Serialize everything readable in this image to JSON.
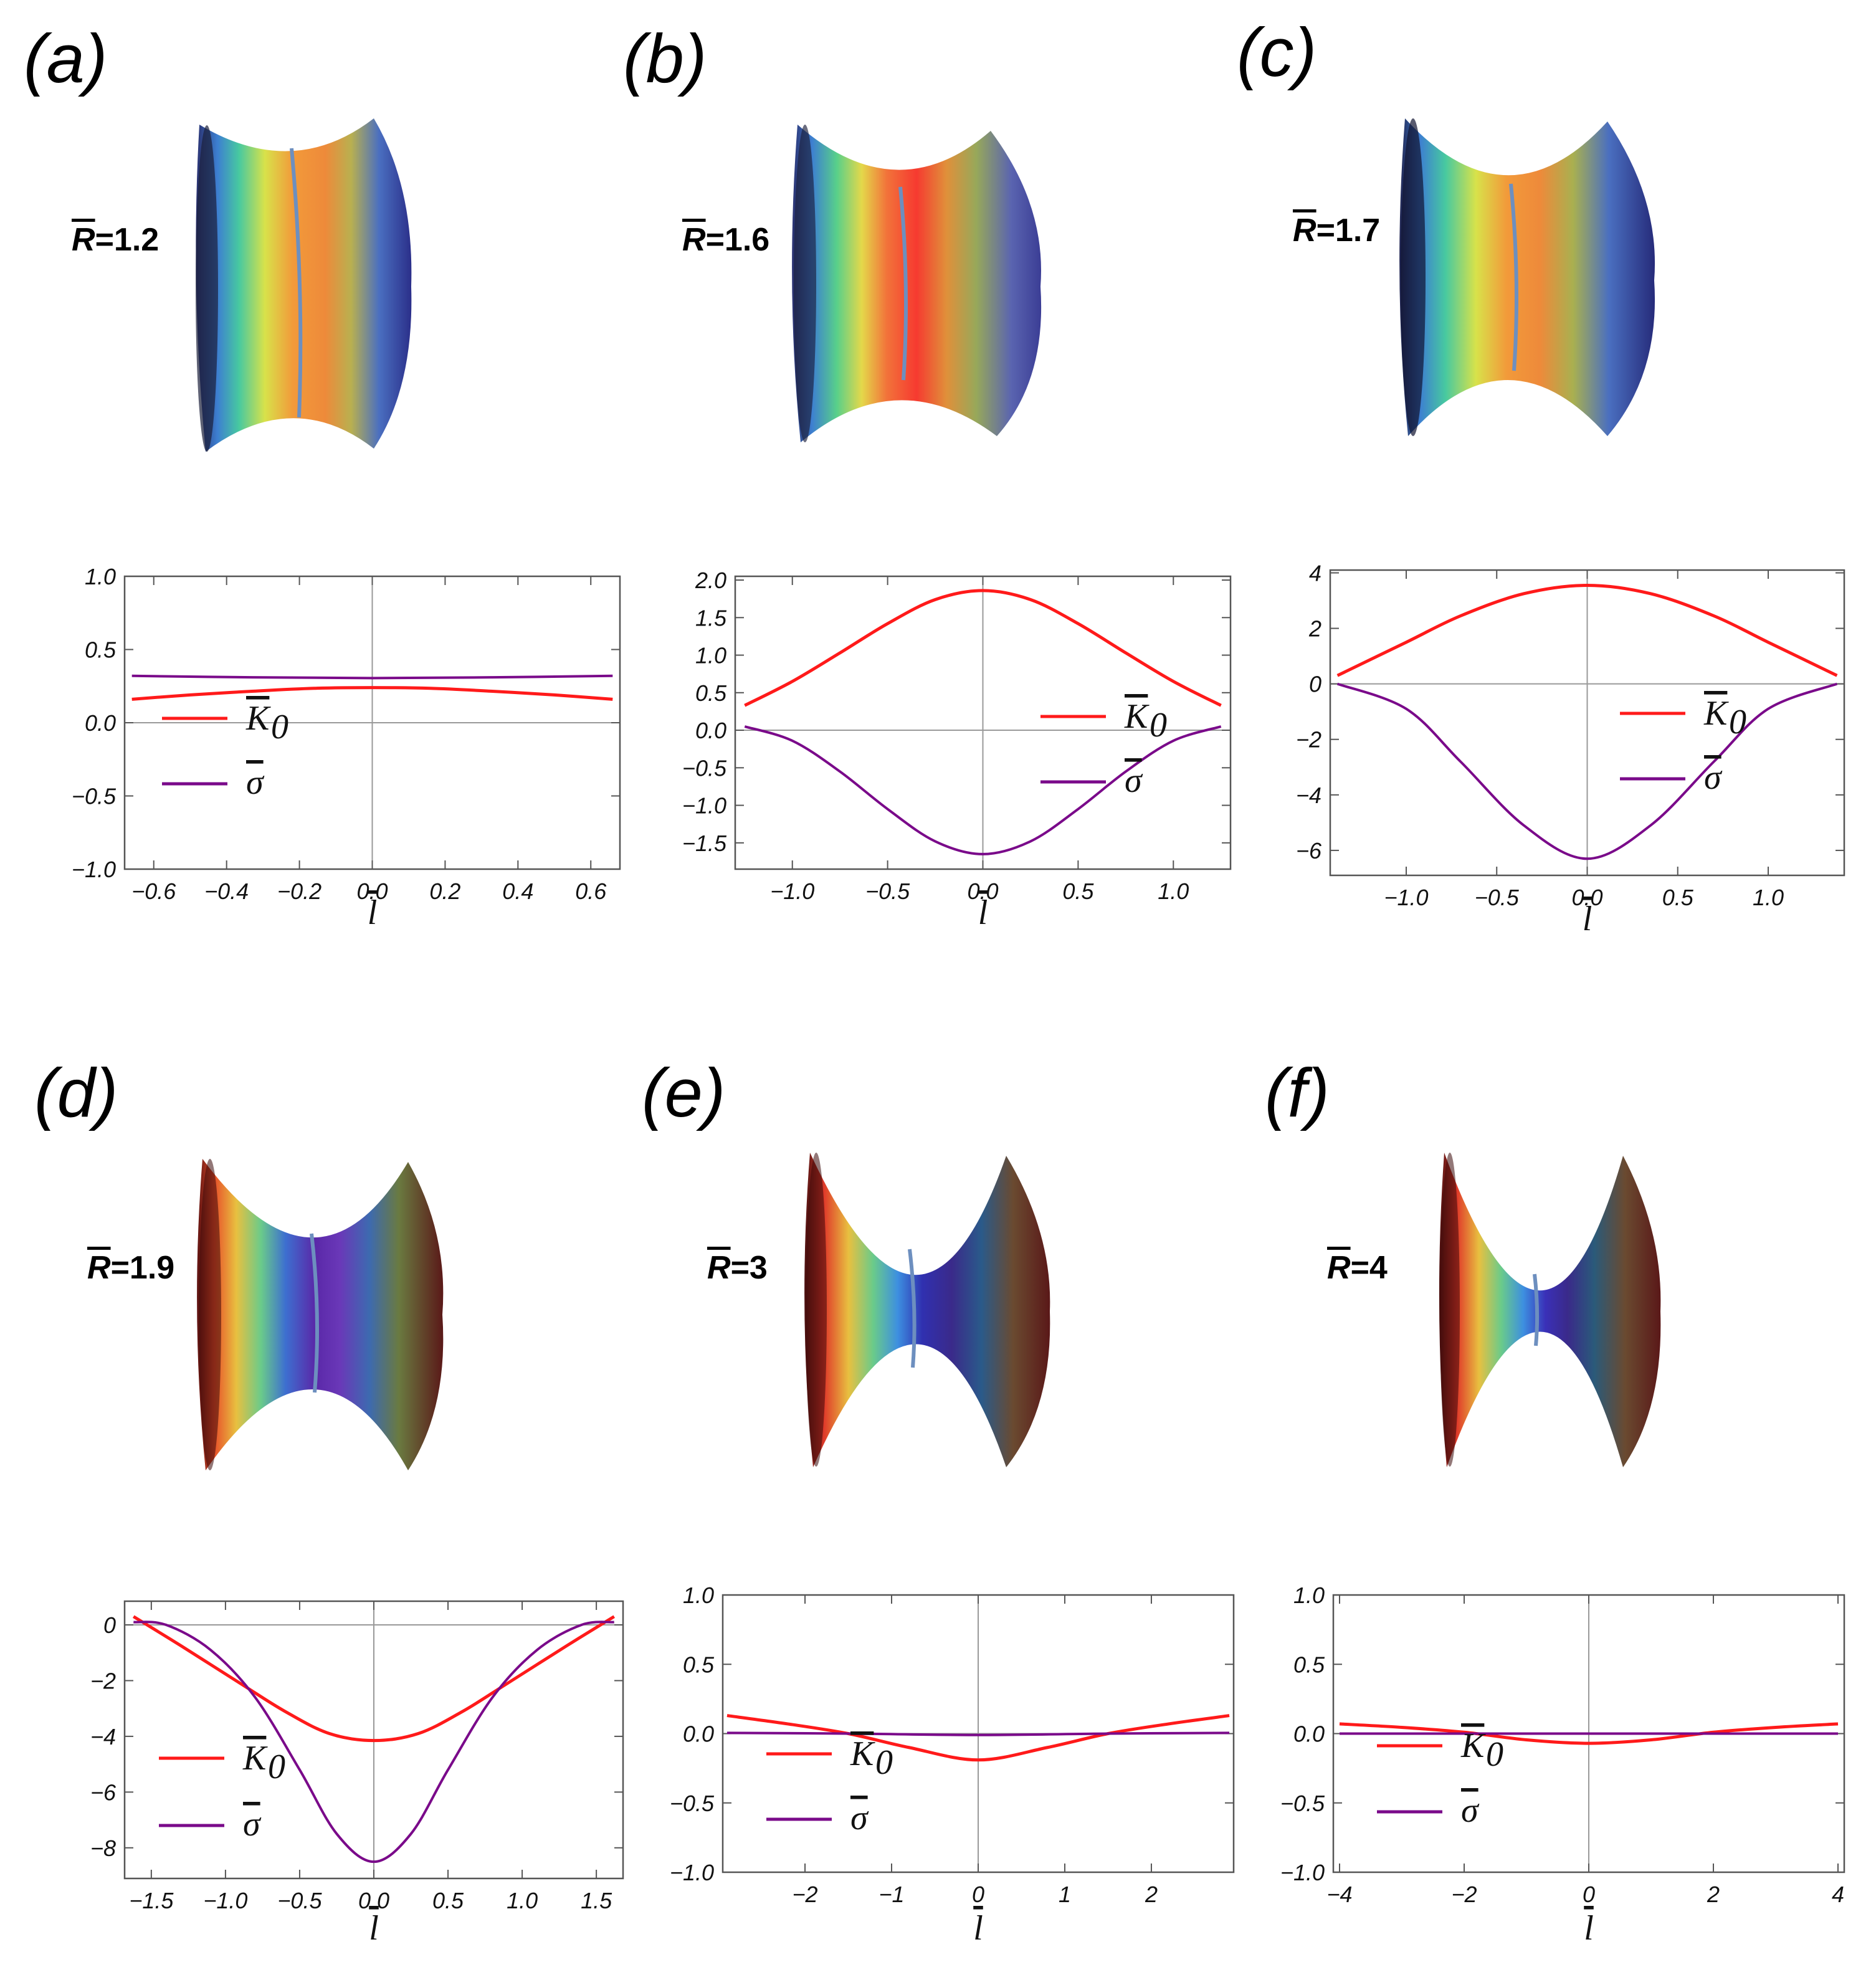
{
  "figure": {
    "panels": [
      {
        "id": "a",
        "label": "(a)",
        "r_label": "R",
        "r_value": "=1.2",
        "surface_palette": "warm-center"
      },
      {
        "id": "b",
        "label": "(b)",
        "r_label": "R",
        "r_value": "=1.6",
        "surface_palette": "red-center"
      },
      {
        "id": "c",
        "label": "(c)",
        "r_label": "R",
        "r_value": "=1.7",
        "surface_palette": "warm-center"
      },
      {
        "id": "d",
        "label": "(d)",
        "r_label": "R",
        "r_value": "=1.9",
        "surface_palette": "violet-center"
      },
      {
        "id": "e",
        "label": "(e)",
        "r_label": "R",
        "r_value": "=3",
        "surface_palette": "blue-center"
      },
      {
        "id": "f",
        "label": "(f)",
        "r_label": "R",
        "r_value": "=4",
        "surface_palette": "blue-center"
      }
    ]
  },
  "colors": {
    "K0": "#ff1a1a",
    "sigma": "#7a0a8a",
    "axis": "#999999",
    "frame": "#555555"
  },
  "legend": {
    "k_symbol": "K",
    "k_subscript": "0",
    "sigma_symbol": "σ"
  },
  "chart_data": [
    {
      "type": "line",
      "panel": "a",
      "xlabel": "l",
      "xlim": [
        -0.68,
        0.68
      ],
      "ylim": [
        -1.0,
        1.0
      ],
      "xticks": [
        -0.6,
        -0.4,
        -0.2,
        0.0,
        0.2,
        0.4,
        0.6
      ],
      "xtick_labels": [
        "−0.6",
        "−0.4",
        "−0.2",
        "0.0",
        "0.2",
        "0.4",
        "0.6"
      ],
      "yticks": [
        1.0,
        0.5,
        0.0,
        -0.5,
        -1.0
      ],
      "ytick_labels": [
        "1.0",
        "0.5",
        "0.0",
        "−0.5",
        "−1.0"
      ],
      "series": [
        {
          "name": "K0",
          "x": [
            -0.66,
            -0.5,
            -0.33,
            -0.16,
            0.0,
            0.16,
            0.33,
            0.5,
            0.66
          ],
          "y": [
            0.16,
            0.19,
            0.215,
            0.235,
            0.24,
            0.235,
            0.215,
            0.19,
            0.16
          ]
        },
        {
          "name": "sigma",
          "x": [
            -0.66,
            -0.33,
            0.0,
            0.33,
            0.66
          ],
          "y": [
            0.32,
            0.31,
            0.305,
            0.31,
            0.32
          ]
        }
      ]
    },
    {
      "type": "line",
      "panel": "b",
      "xlabel": "l",
      "xlim": [
        -1.3,
        1.3
      ],
      "ylim": [
        -1.85,
        2.05
      ],
      "xticks": [
        -1.0,
        -0.5,
        0.0,
        0.5,
        1.0
      ],
      "xtick_labels": [
        "−1.0",
        "−0.5",
        "0.0",
        "0.5",
        "1.0"
      ],
      "yticks": [
        2.0,
        1.5,
        1.0,
        0.5,
        0.0,
        -0.5,
        -1.0,
        -1.5
      ],
      "ytick_labels": [
        "2.0",
        "1.5",
        "1.0",
        "0.5",
        "0.0",
        "−0.5",
        "−1.0",
        "−1.5"
      ],
      "series": [
        {
          "name": "K0",
          "x": [
            -1.25,
            -1.0,
            -0.75,
            -0.5,
            -0.25,
            0.0,
            0.25,
            0.5,
            0.75,
            1.0,
            1.25
          ],
          "y": [
            0.33,
            0.65,
            1.03,
            1.42,
            1.74,
            1.86,
            1.74,
            1.42,
            1.03,
            0.65,
            0.33
          ]
        },
        {
          "name": "sigma",
          "x": [
            -1.25,
            -1.0,
            -0.75,
            -0.5,
            -0.25,
            0.0,
            0.25,
            0.5,
            0.75,
            1.0,
            1.25
          ],
          "y": [
            0.05,
            -0.14,
            -0.55,
            -1.05,
            -1.48,
            -1.65,
            -1.48,
            -1.05,
            -0.55,
            -0.14,
            0.05
          ]
        }
      ]
    },
    {
      "type": "line",
      "panel": "c",
      "xlabel": "l",
      "xlim": [
        -1.42,
        1.42
      ],
      "ylim": [
        -6.9,
        4.1
      ],
      "xticks": [
        -1.0,
        -0.5,
        0.0,
        0.5,
        1.0
      ],
      "xtick_labels": [
        "−1.0",
        "−0.5",
        "0.0",
        "0.5",
        "1.0"
      ],
      "yticks": [
        4,
        2,
        0,
        -2,
        -4,
        -6
      ],
      "ytick_labels": [
        "4",
        "2",
        "0",
        "−2",
        "−4",
        "−6"
      ],
      "series": [
        {
          "name": "K0",
          "x": [
            -1.38,
            -1.0,
            -0.7,
            -0.35,
            0.0,
            0.35,
            0.7,
            1.0,
            1.38
          ],
          "y": [
            0.3,
            1.5,
            2.45,
            3.25,
            3.55,
            3.25,
            2.45,
            1.5,
            0.3
          ]
        },
        {
          "name": "sigma",
          "x": [
            -1.38,
            -1.0,
            -0.7,
            -0.35,
            0.0,
            0.35,
            0.7,
            1.0,
            1.38
          ],
          "y": [
            0.0,
            -0.9,
            -2.8,
            -5.1,
            -6.3,
            -5.1,
            -2.8,
            -0.9,
            0.0
          ]
        }
      ]
    },
    {
      "type": "line",
      "panel": "d",
      "xlabel": "l",
      "xlim": [
        -1.68,
        1.68
      ],
      "ylim": [
        -9.1,
        0.85
      ],
      "xticks": [
        -1.5,
        -1.0,
        -0.5,
        0.0,
        0.5,
        1.0,
        1.5
      ],
      "xtick_labels": [
        "−1.5",
        "−1.0",
        "−0.5",
        "0.0",
        "0.5",
        "1.0",
        "1.5"
      ],
      "yticks": [
        0,
        -2,
        -4,
        -6,
        -8
      ],
      "ytick_labels": [
        "0",
        "−2",
        "−4",
        "−6",
        "−8"
      ],
      "series": [
        {
          "name": "K0",
          "x": [
            -1.62,
            -1.3,
            -0.9,
            -0.6,
            -0.3,
            0.0,
            0.3,
            0.6,
            0.9,
            1.3,
            1.62
          ],
          "y": [
            0.3,
            -0.75,
            -2.1,
            -3.1,
            -3.9,
            -4.15,
            -3.9,
            -3.1,
            -2.1,
            -0.75,
            0.3
          ]
        },
        {
          "name": "sigma",
          "x": [
            -1.62,
            -1.4,
            -1.1,
            -0.8,
            -0.5,
            -0.25,
            0.0,
            0.25,
            0.5,
            0.8,
            1.1,
            1.4,
            1.62
          ],
          "y": [
            0.1,
            0.0,
            -0.9,
            -2.6,
            -5.2,
            -7.5,
            -8.5,
            -7.5,
            -5.2,
            -2.6,
            -0.9,
            0.0,
            0.1
          ]
        }
      ]
    },
    {
      "type": "line",
      "panel": "e",
      "xlabel": "l",
      "xlim": [
        -2.95,
        2.95
      ],
      "ylim": [
        -1.0,
        1.0
      ],
      "xticks": [
        -2,
        -1,
        0,
        1,
        2
      ],
      "xtick_labels": [
        "−2",
        "−1",
        "0",
        "1",
        "2"
      ],
      "yticks": [
        1.0,
        0.5,
        0.0,
        -0.5,
        -1.0
      ],
      "ytick_labels": [
        "1.0",
        "0.5",
        "0.0",
        "−0.5",
        "−1.0"
      ],
      "series": [
        {
          "name": "K0",
          "x": [
            -2.9,
            -2.2,
            -1.5,
            -0.8,
            0.0,
            0.8,
            1.5,
            2.2,
            2.9
          ],
          "y": [
            0.13,
            0.07,
            0.0,
            -0.1,
            -0.19,
            -0.1,
            0.0,
            0.07,
            0.13
          ]
        },
        {
          "name": "sigma",
          "x": [
            -2.9,
            -1.5,
            0.0,
            1.5,
            2.9
          ],
          "y": [
            0.005,
            0.0,
            -0.01,
            0.0,
            0.005
          ]
        }
      ]
    },
    {
      "type": "line",
      "panel": "f",
      "xlabel": "l",
      "xlim": [
        -4.1,
        4.1
      ],
      "ylim": [
        -1.0,
        1.0
      ],
      "xticks": [
        -4,
        -2,
        0,
        2,
        4
      ],
      "xtick_labels": [
        "−4",
        "−2",
        "0",
        "2",
        "4"
      ],
      "yticks": [
        1.0,
        0.5,
        0.0,
        -0.5,
        -1.0
      ],
      "ytick_labels": [
        "1.0",
        "0.5",
        "0.0",
        "−0.5",
        "−1.0"
      ],
      "series": [
        {
          "name": "K0",
          "x": [
            -4.0,
            -3.0,
            -2.0,
            -1.0,
            0.0,
            1.0,
            2.0,
            3.0,
            4.0
          ],
          "y": [
            0.07,
            0.045,
            0.01,
            -0.045,
            -0.07,
            -0.045,
            0.01,
            0.045,
            0.07
          ]
        },
        {
          "name": "sigma",
          "x": [
            -4.0,
            0.0,
            4.0
          ],
          "y": [
            0.0,
            0.0,
            0.0
          ]
        }
      ]
    }
  ]
}
